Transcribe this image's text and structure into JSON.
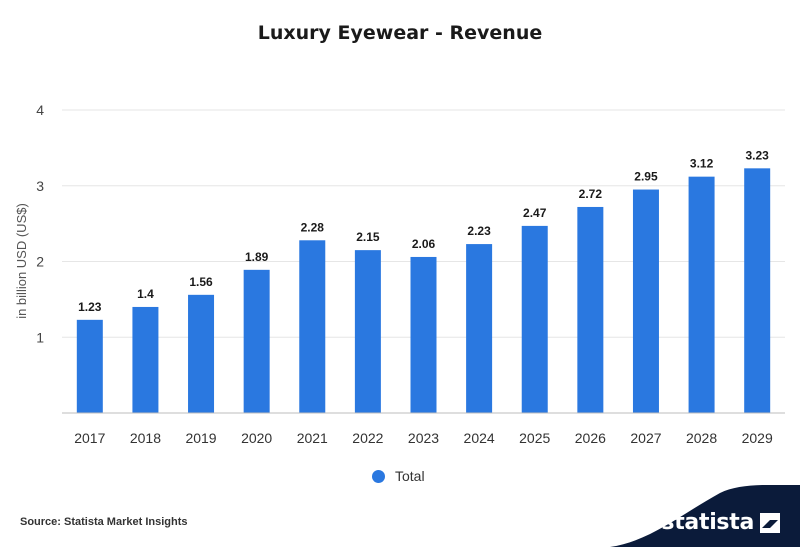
{
  "chart_data": {
    "type": "bar",
    "title": "Luxury Eyewear - Revenue",
    "ylabel": "in billion USD (US$)",
    "xlabel": "",
    "categories": [
      "2017",
      "2018",
      "2019",
      "2020",
      "2021",
      "2022",
      "2023",
      "2024",
      "2025",
      "2026",
      "2027",
      "2028",
      "2029"
    ],
    "series": [
      {
        "name": "Total",
        "values": [
          1.23,
          1.4,
          1.56,
          1.89,
          2.28,
          2.15,
          2.06,
          2.23,
          2.47,
          2.72,
          2.95,
          3.12,
          3.23
        ]
      }
    ],
    "data_labels": [
      "1.23",
      "1.4",
      "1.56",
      "1.89",
      "2.28",
      "2.15",
      "2.06",
      "2.23",
      "2.47",
      "2.72",
      "2.95",
      "3.12",
      "3.23"
    ],
    "yticks": [
      1,
      2,
      3,
      4
    ],
    "ylim": [
      0,
      4
    ],
    "grid": true,
    "legend_position": "bottom-center"
  },
  "colors": {
    "bar": "#2a78e0",
    "grid": "#e6e6e6",
    "axis": "#bdbdbd",
    "brand_bg": "#0b1b3a"
  },
  "legend": {
    "label": "Total"
  },
  "footer": {
    "source": "Source: Statista Market Insights",
    "brand": "statista",
    "brand_icon": "statista-logo-icon"
  }
}
